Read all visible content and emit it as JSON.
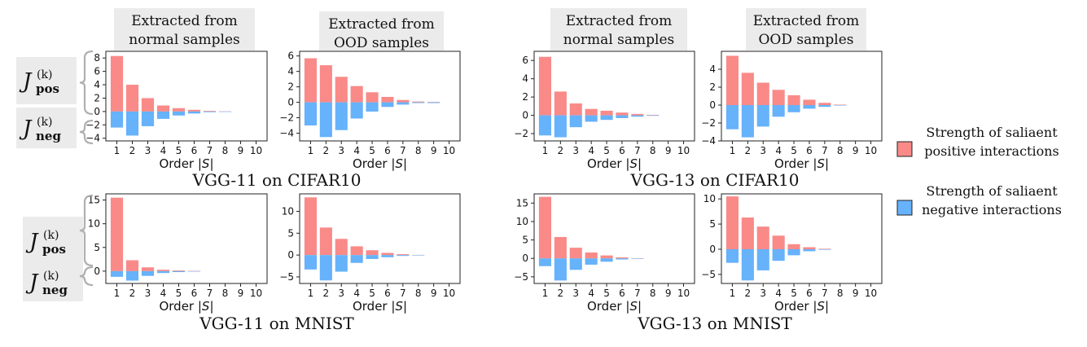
{
  "figure": {
    "col_headers": [
      [
        "Extracted from",
        "normal samples"
      ],
      [
        "Extracted from",
        "OOD samples"
      ],
      [
        "Extracted from",
        "normal samples"
      ],
      [
        "Extracted from",
        "OOD samples"
      ]
    ],
    "group_titles": [
      "VGG-11 on CIFAR10",
      "VGG-13 on CIFAR10",
      "VGG-11 on MNIST",
      "VGG-13 on MNIST"
    ],
    "xlabel_word": "Order ",
    "xlabel_symbol": "|S|",
    "j_symbol": "J",
    "j_superscript": "(k)",
    "j_pos_subscript": "pos",
    "j_neg_subscript": "neg",
    "legend": [
      {
        "lines": [
          "Strength of saliaent",
          "positive interactions"
        ],
        "color": "#f98a88"
      },
      {
        "lines": [
          "Strength of saliaent",
          "negative interactions"
        ],
        "color": "#66b2fb"
      }
    ],
    "colors": {
      "positive": "#f98a88",
      "negative": "#66b2fb",
      "header_bg": "#ebebeb"
    }
  },
  "chart_data": [
    {
      "type": "bar",
      "group": "VGG-11 on CIFAR10",
      "subtitle": "Extracted from normal samples",
      "categories": [
        1,
        2,
        3,
        4,
        5,
        6,
        7,
        8,
        9,
        10
      ],
      "positive": [
        8.3,
        4.0,
        2.0,
        0.9,
        0.5,
        0.25,
        0.1,
        0.02,
        0,
        0
      ],
      "negative": [
        -2.4,
        -3.6,
        -2.2,
        -1.1,
        -0.6,
        -0.3,
        -0.1,
        -0.02,
        0,
        0
      ],
      "ylim": [
        -4.4,
        9.0
      ],
      "yticks": [
        -4,
        -2,
        0,
        2,
        4,
        6,
        8
      ],
      "xlabel": "Order |S|"
    },
    {
      "type": "bar",
      "group": "VGG-11 on CIFAR10",
      "subtitle": "Extracted from OOD samples",
      "categories": [
        1,
        2,
        3,
        4,
        5,
        6,
        7,
        8,
        9,
        10
      ],
      "positive": [
        5.7,
        4.8,
        3.3,
        2.1,
        1.3,
        0.7,
        0.3,
        0.1,
        0.05,
        0
      ],
      "negative": [
        -3.0,
        -4.5,
        -3.6,
        -2.1,
        -1.2,
        -0.6,
        -0.3,
        -0.1,
        -0.1,
        0
      ],
      "ylim": [
        -5.0,
        6.6
      ],
      "yticks": [
        -4,
        -2,
        0,
        2,
        4,
        6
      ],
      "xlabel": "Order |S|"
    },
    {
      "type": "bar",
      "group": "VGG-13 on CIFAR10",
      "subtitle": "Extracted from normal samples",
      "categories": [
        1,
        2,
        3,
        4,
        5,
        6,
        7,
        8,
        9,
        10
      ],
      "positive": [
        6.4,
        2.6,
        1.3,
        0.7,
        0.5,
        0.3,
        0.15,
        0.05,
        0,
        0
      ],
      "negative": [
        -2.2,
        -2.4,
        -1.3,
        -0.7,
        -0.5,
        -0.3,
        -0.15,
        -0.05,
        0,
        0
      ],
      "ylim": [
        -2.8,
        7.0
      ],
      "yticks": [
        -2,
        0,
        2,
        4,
        6
      ],
      "xlabel": "Order |S|"
    },
    {
      "type": "bar",
      "group": "VGG-13 on CIFAR10",
      "subtitle": "Extracted from OOD samples",
      "categories": [
        1,
        2,
        3,
        4,
        5,
        6,
        7,
        8,
        9,
        10
      ],
      "positive": [
        5.5,
        3.6,
        2.5,
        1.7,
        1.1,
        0.6,
        0.25,
        0.05,
        0,
        0
      ],
      "negative": [
        -2.7,
        -3.6,
        -2.4,
        -1.3,
        -0.8,
        -0.4,
        -0.2,
        -0.05,
        0,
        0
      ],
      "ylim": [
        -4.0,
        6.0
      ],
      "yticks": [
        -4,
        -2,
        0,
        2,
        4
      ],
      "xlabel": "Order |S|"
    },
    {
      "type": "bar",
      "group": "VGG-11 on MNIST",
      "subtitle": "Extracted from normal samples",
      "categories": [
        1,
        2,
        3,
        4,
        5,
        6,
        7,
        8,
        9,
        10
      ],
      "positive": [
        15.5,
        2.3,
        0.8,
        0.3,
        0.15,
        0.05,
        0,
        0,
        0,
        0
      ],
      "negative": [
        -1.2,
        -2.0,
        -1.0,
        -0.4,
        -0.2,
        -0.05,
        0,
        0,
        0,
        0
      ],
      "ylim": [
        -2.6,
        16.3
      ],
      "yticks": [
        0,
        5,
        10,
        15
      ],
      "xlabel": "Order |S|"
    },
    {
      "type": "bar",
      "group": "VGG-11 on MNIST",
      "subtitle": "Extracted from OOD samples",
      "categories": [
        1,
        2,
        3,
        4,
        5,
        6,
        7,
        8,
        9,
        10
      ],
      "positive": [
        13.2,
        6.3,
        3.7,
        2.0,
        1.1,
        0.5,
        0.2,
        0.05,
        0,
        0
      ],
      "negative": [
        -3.3,
        -5.8,
        -3.8,
        -1.8,
        -0.9,
        -0.5,
        -0.2,
        -0.05,
        0,
        0
      ],
      "ylim": [
        -6.5,
        14.0
      ],
      "yticks": [
        -5,
        0,
        5,
        10
      ],
      "xlabel": "Order |S|"
    },
    {
      "type": "bar",
      "group": "VGG-13 on MNIST",
      "subtitle": "Extracted from normal samples",
      "categories": [
        1,
        2,
        3,
        4,
        5,
        6,
        7,
        8,
        9,
        10
      ],
      "positive": [
        16.7,
        5.8,
        2.9,
        1.6,
        0.8,
        0.3,
        0.05,
        0,
        0,
        0
      ],
      "negative": [
        -2.1,
        -6.0,
        -3.1,
        -1.7,
        -0.9,
        -0.3,
        -0.05,
        0,
        0,
        0
      ],
      "ylim": [
        -6.8,
        17.5
      ],
      "yticks": [
        -5,
        0,
        5,
        10,
        15
      ],
      "xlabel": "Order |S|"
    },
    {
      "type": "bar",
      "group": "VGG-13 on MNIST",
      "subtitle": "Extracted from OOD samples",
      "categories": [
        1,
        2,
        3,
        4,
        5,
        6,
        7,
        8,
        9,
        10
      ],
      "positive": [
        10.5,
        6.3,
        4.5,
        2.7,
        1.0,
        0.4,
        0.1,
        0,
        0,
        0
      ],
      "negative": [
        -2.7,
        -6.2,
        -4.2,
        -2.3,
        -1.2,
        -0.4,
        -0.1,
        0,
        0,
        0
      ],
      "ylim": [
        -6.8,
        11.0
      ],
      "yticks": [
        -5,
        0,
        5,
        10
      ],
      "xlabel": "Order |S|"
    }
  ]
}
